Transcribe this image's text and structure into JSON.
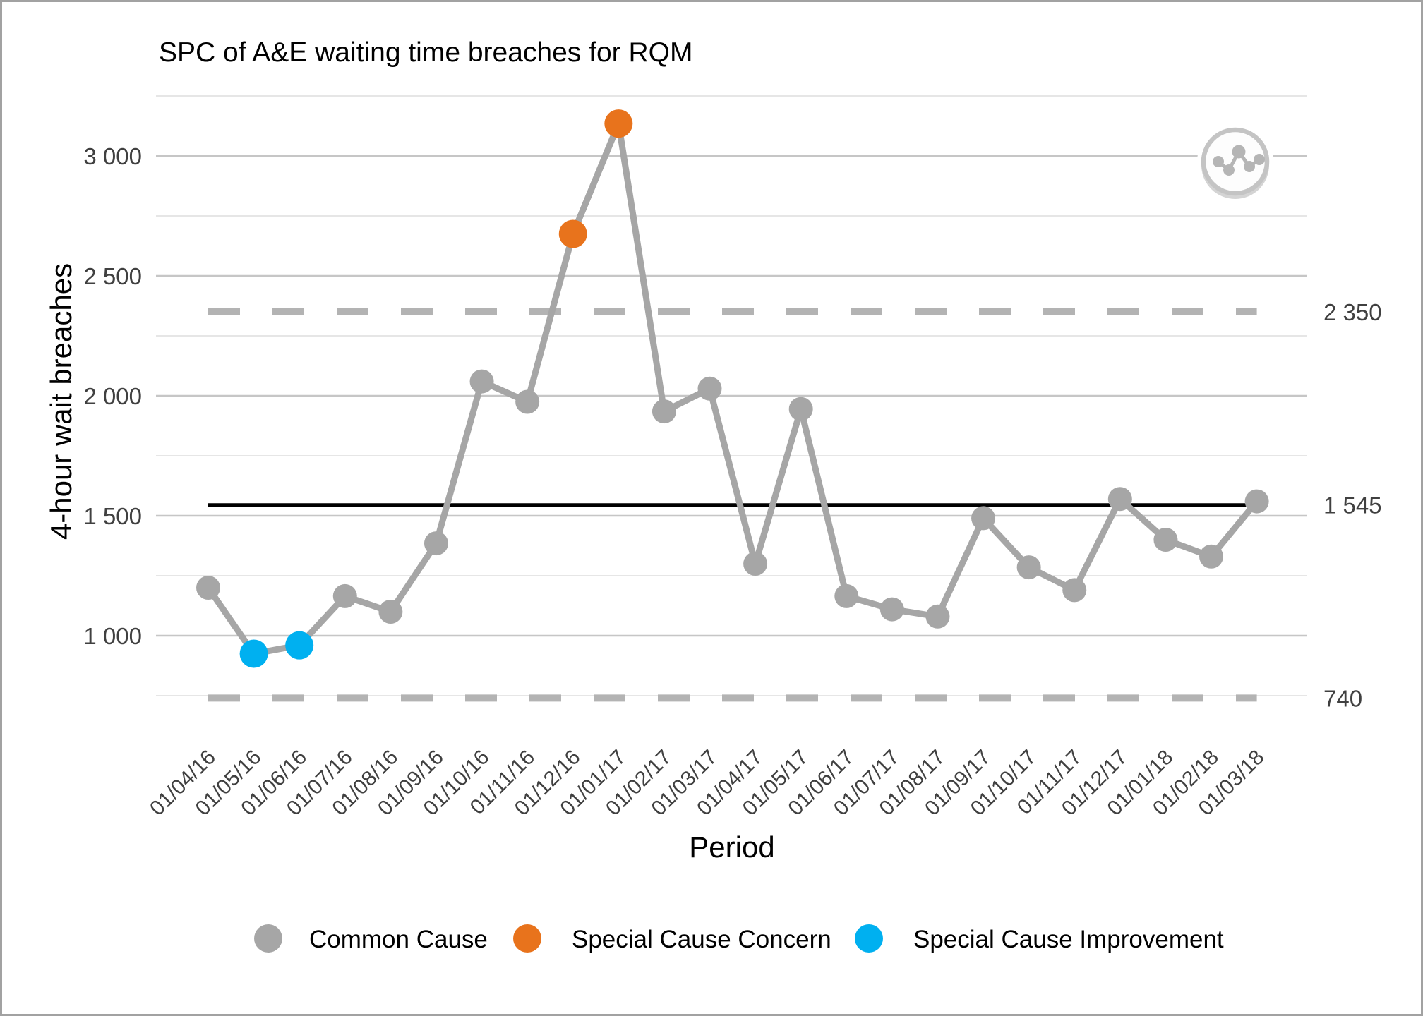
{
  "window": {
    "title": "SPC of A&E waiting time breaches for RQM"
  },
  "chart_data": {
    "type": "line",
    "title": "SPC of A&E waiting time breaches for RQM",
    "xlabel": "Period",
    "ylabel": "4-hour wait breaches",
    "x": [
      "01/04/16",
      "01/05/16",
      "01/06/16",
      "01/07/16",
      "01/08/16",
      "01/09/16",
      "01/10/16",
      "01/11/16",
      "01/12/16",
      "01/01/17",
      "01/02/17",
      "01/03/17",
      "01/04/17",
      "01/05/17",
      "01/06/17",
      "01/07/17",
      "01/08/17",
      "01/09/17",
      "01/10/17",
      "01/11/17",
      "01/12/17",
      "01/01/18",
      "01/02/18",
      "01/03/18"
    ],
    "series": [
      {
        "name": "4-hour wait breaches",
        "values": [
          1200,
          925,
          960,
          1165,
          1100,
          1385,
          2060,
          1975,
          2675,
          3135,
          1935,
          2030,
          1300,
          1945,
          1165,
          1110,
          1080,
          1490,
          1285,
          1190,
          1570,
          1400,
          1330,
          1560
        ]
      }
    ],
    "point_types": [
      "common",
      "improvement",
      "improvement",
      "common",
      "common",
      "common",
      "common",
      "common",
      "concern",
      "concern",
      "common",
      "common",
      "common",
      "common",
      "common",
      "common",
      "common",
      "common",
      "common",
      "common",
      "common",
      "common",
      "common",
      "common"
    ],
    "control_limits": {
      "ucl": {
        "value": 2350,
        "label": "2 350",
        "style": "dashed"
      },
      "mean": {
        "value": 1545,
        "label": "1 545",
        "style": "solid"
      },
      "lcl": {
        "value": 740,
        "label": "740",
        "style": "dashed"
      }
    },
    "yticks": [
      {
        "value": 3000,
        "label": "3 000"
      },
      {
        "value": 2500,
        "label": "2 500"
      },
      {
        "value": 2000,
        "label": "2 000"
      },
      {
        "value": 1500,
        "label": "1 500"
      },
      {
        "value": 1000,
        "label": "1 000"
      }
    ],
    "yminor": [
      3250,
      2750,
      2250,
      1750,
      1250,
      750
    ],
    "ylim": [
      700,
      3300
    ],
    "grid": true,
    "legend_position": "bottom",
    "legend": [
      {
        "label": "Common Cause",
        "type": "common"
      },
      {
        "label": "Special Cause Concern",
        "type": "concern"
      },
      {
        "label": "Special Cause Improvement",
        "type": "improvement"
      }
    ],
    "colors": {
      "common": "#a6a6a6",
      "concern": "#e8731c",
      "improvement": "#00b0f0",
      "mean_line": "#000000",
      "limit_line": "#b3b3b3",
      "grid_major": "#c6c6c6",
      "grid_minor": "#dedede",
      "tick_text": "#404040"
    },
    "icon": "line-chart-icon"
  }
}
